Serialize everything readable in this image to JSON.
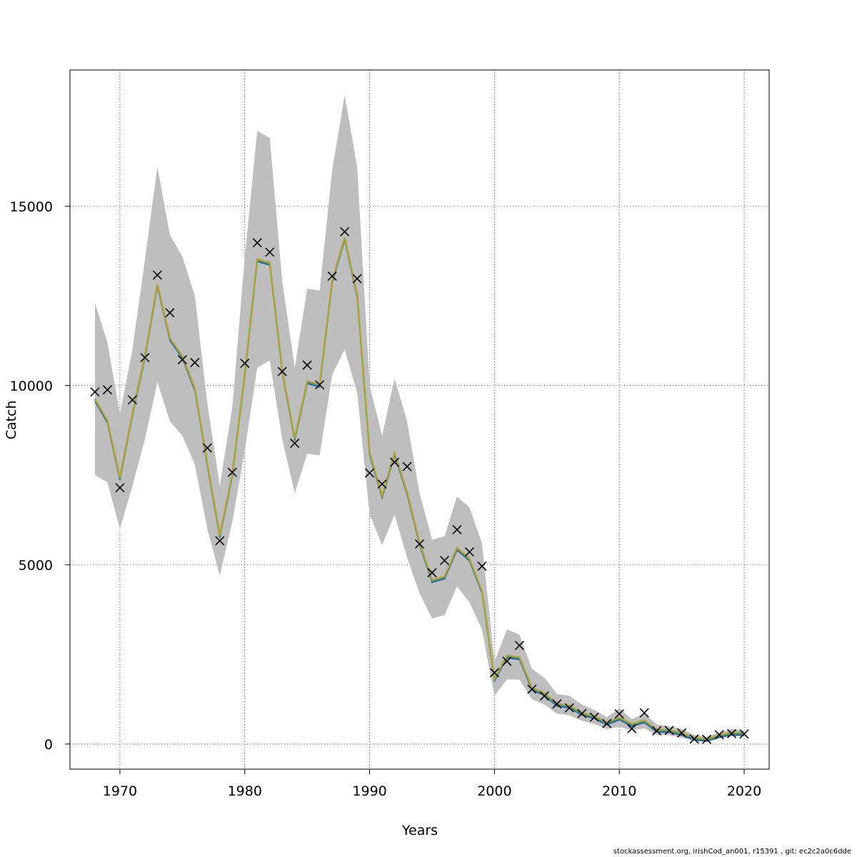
{
  "footer": "stockassessment.org, irishCod_an001, r15391 , git: ec2c2a0c6dde",
  "chart_data": {
    "type": "line",
    "xlabel": "Years",
    "ylabel": "Catch",
    "xlim": [
      1966,
      2022
    ],
    "ylim": [
      -700,
      18800
    ],
    "xticks": [
      1970,
      1980,
      1990,
      2000,
      2010,
      2020
    ],
    "yticks": [
      0,
      5000,
      10000,
      15000
    ],
    "grid": true,
    "band_color": "#bebebe",
    "line_colors": [
      "#1f3a93",
      "#2e86c1",
      "#17a589",
      "#6aa84f",
      "#c9a227"
    ],
    "marker_color": "#000000",
    "x": [
      1968,
      1969,
      1970,
      1971,
      1972,
      1973,
      1974,
      1975,
      1976,
      1977,
      1978,
      1979,
      1980,
      1981,
      1982,
      1983,
      1984,
      1985,
      1986,
      1987,
      1988,
      1989,
      1990,
      1991,
      1992,
      1993,
      1994,
      1995,
      1996,
      1997,
      1998,
      1999,
      2000,
      2001,
      2002,
      2003,
      2004,
      2005,
      2006,
      2007,
      2008,
      2009,
      2010,
      2011,
      2012,
      2013,
      2014,
      2015,
      2016,
      2017,
      2018,
      2019,
      2020
    ],
    "upper": [
      12300,
      11200,
      9200,
      11000,
      13500,
      16100,
      14200,
      13600,
      12500,
      9500,
      7200,
      9400,
      13600,
      17100,
      16900,
      12900,
      10500,
      12700,
      12650,
      16000,
      18100,
      16100,
      10000,
      8600,
      10200,
      9000,
      7000,
      5700,
      5800,
      6900,
      6600,
      5600,
      2300,
      3200,
      3050,
      2100,
      1850,
      1400,
      1350,
      1100,
      950,
      750,
      1000,
      700,
      850,
      550,
      500,
      420,
      250,
      200,
      320,
      420,
      380
    ],
    "fit": [
      9600,
      9000,
      7400,
      9200,
      10800,
      12800,
      11300,
      10800,
      9900,
      7800,
      5800,
      7500,
      10300,
      13500,
      13400,
      10400,
      8500,
      10100,
      10000,
      12900,
      14100,
      12500,
      8100,
      6900,
      8100,
      7000,
      5600,
      4550,
      4650,
      5450,
      5150,
      4250,
      1800,
      2450,
      2400,
      1550,
      1400,
      1100,
      1050,
      850,
      750,
      580,
      720,
      540,
      640,
      380,
      370,
      290,
      160,
      120,
      230,
      300,
      290
    ],
    "lower": [
      7500,
      7300,
      6000,
      7200,
      8500,
      10100,
      9000,
      8600,
      7800,
      6000,
      4700,
      6200,
      8200,
      10500,
      10700,
      8500,
      7000,
      8100,
      8050,
      10300,
      11000,
      9800,
      6400,
      5550,
      6400,
      5200,
      4200,
      3500,
      3600,
      4400,
      3950,
      3200,
      1350,
      1800,
      1800,
      1250,
      1100,
      850,
      800,
      650,
      560,
      420,
      480,
      380,
      440,
      250,
      250,
      170,
      90,
      60,
      160,
      210,
      210
    ],
    "observed": [
      9820,
      9880,
      7150,
      9600,
      10780,
      13080,
      12030,
      10720,
      10640,
      8260,
      5670,
      7580,
      10620,
      13980,
      13720,
      10390,
      8390,
      10570,
      10020,
      13050,
      14290,
      12980,
      7560,
      7250,
      7860,
      7740,
      5580,
      4780,
      5120,
      5980,
      5360,
      4960,
      1990,
      2310,
      2750,
      1530,
      1340,
      1120,
      1010,
      850,
      750,
      570,
      840,
      430,
      870,
      370,
      380,
      310,
      140,
      130,
      260,
      290,
      280
    ]
  }
}
